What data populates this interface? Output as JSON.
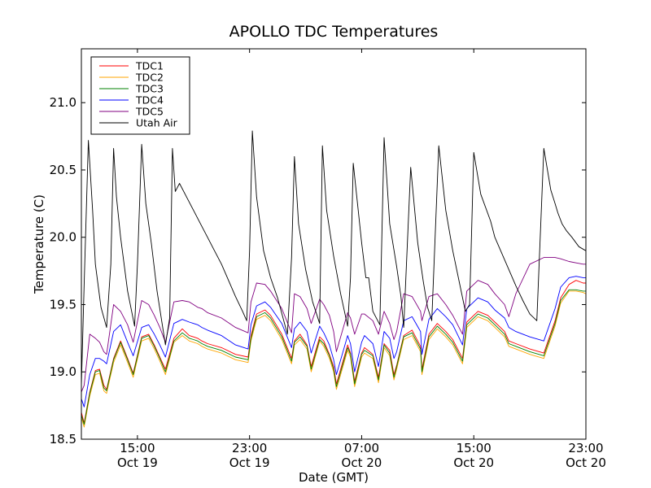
{
  "chart_data": {
    "type": "line",
    "title": "APOLLO TDC Temperatures",
    "xlabel": "Date (GMT)",
    "ylabel": "Temperature (C)",
    "xlim": [
      0,
      36
    ],
    "ylim": [
      18.5,
      21.4
    ],
    "x_unit": "hours since Oct 19 11:00 GMT",
    "yticks": [
      18.5,
      19.0,
      19.5,
      20.0,
      20.5,
      21.0
    ],
    "ytick_labels": [
      "18.5",
      "19.0",
      "19.5",
      "20.0",
      "20.5",
      "21.0"
    ],
    "xticks": [
      {
        "x": 4,
        "time": "15:00",
        "date": "Oct 19"
      },
      {
        "x": 12,
        "time": "23:00",
        "date": "Oct 19"
      },
      {
        "x": 20,
        "time": "07:00",
        "date": "Oct 20"
      },
      {
        "x": 28,
        "time": "15:00",
        "date": "Oct 20"
      },
      {
        "x": 36,
        "time": "23:00",
        "date": "Oct 20"
      }
    ],
    "legend_position": "top-left",
    "series": [
      {
        "name": "TDC1",
        "color": "#ff0000",
        "x": [
          0,
          0.2,
          0.6,
          1.0,
          1.3,
          1.6,
          1.8,
          2.3,
          2.8,
          3.3,
          3.7,
          4.3,
          4.8,
          5.2,
          5.6,
          6.0,
          6.6,
          7.2,
          7.7,
          8.0,
          8.3,
          8.6,
          9.0,
          10.0,
          11.0,
          11.9,
          12.1,
          12.5,
          13.1,
          13.5,
          14.3,
          15.0,
          15.2,
          15.6,
          16.1,
          16.4,
          17.0,
          17.3,
          17.7,
          18.0,
          18.2,
          19.0,
          19.2,
          19.5,
          20.0,
          20.2,
          20.8,
          21.2,
          21.6,
          22.0,
          22.3,
          22.5,
          23.0,
          23.6,
          24.2,
          24.3,
          24.8,
          25.4,
          26.0,
          26.5,
          27.2,
          27.5,
          28.3,
          29.0,
          29.5,
          30.2,
          30.5,
          31.0,
          32.0,
          33.0,
          33.8,
          34.2,
          34.8,
          35.3,
          35.8,
          36.0
        ],
        "values": [
          18.7,
          18.62,
          18.85,
          19.01,
          19.02,
          18.9,
          18.87,
          19.1,
          19.23,
          19.1,
          18.99,
          19.26,
          19.28,
          19.2,
          19.11,
          19.02,
          19.25,
          19.32,
          19.27,
          19.26,
          19.25,
          19.23,
          19.21,
          19.18,
          19.13,
          19.11,
          19.27,
          19.43,
          19.46,
          19.42,
          19.28,
          19.1,
          19.23,
          19.28,
          19.2,
          19.04,
          19.26,
          19.23,
          19.13,
          19.04,
          18.91,
          19.2,
          19.14,
          18.93,
          19.14,
          19.18,
          19.13,
          18.96,
          19.21,
          19.16,
          18.98,
          19.05,
          19.27,
          19.31,
          19.19,
          19.02,
          19.28,
          19.36,
          19.3,
          19.24,
          19.1,
          19.37,
          19.45,
          19.42,
          19.37,
          19.3,
          19.23,
          19.21,
          19.17,
          19.14,
          19.38,
          19.55,
          19.65,
          19.68,
          19.66,
          19.66
        ]
      },
      {
        "name": "TDC2",
        "color": "#ffa500",
        "x": [
          0,
          0.2,
          0.6,
          1.0,
          1.3,
          1.6,
          1.8,
          2.3,
          2.8,
          3.3,
          3.7,
          4.3,
          4.8,
          5.2,
          5.6,
          6.0,
          6.6,
          7.2,
          7.7,
          8.0,
          8.3,
          8.6,
          9.0,
          10.0,
          11.0,
          11.9,
          12.1,
          12.5,
          13.1,
          13.5,
          14.3,
          15.0,
          15.2,
          15.6,
          16.1,
          16.4,
          17.0,
          17.3,
          17.7,
          18.0,
          18.2,
          19.0,
          19.2,
          19.5,
          20.0,
          20.2,
          20.8,
          21.2,
          21.6,
          22.0,
          22.3,
          22.5,
          23.0,
          23.6,
          24.2,
          24.3,
          24.8,
          25.4,
          26.0,
          26.5,
          27.2,
          27.5,
          28.3,
          29.0,
          29.5,
          30.2,
          30.5,
          31.0,
          32.0,
          33.0,
          33.8,
          34.2,
          34.8,
          35.3,
          35.8,
          36.0
        ],
        "values": [
          18.66,
          18.59,
          18.82,
          18.98,
          18.99,
          18.86,
          18.84,
          19.07,
          19.2,
          19.07,
          18.96,
          19.23,
          19.25,
          19.17,
          19.08,
          18.98,
          19.22,
          19.27,
          19.23,
          19.22,
          19.21,
          19.19,
          19.17,
          19.14,
          19.09,
          19.07,
          19.23,
          19.39,
          19.42,
          19.38,
          19.24,
          19.06,
          19.2,
          19.24,
          19.17,
          19.0,
          19.23,
          19.19,
          19.1,
          19.0,
          18.87,
          19.16,
          19.11,
          18.89,
          19.11,
          19.14,
          19.1,
          18.92,
          19.18,
          19.12,
          18.94,
          19.02,
          19.24,
          19.27,
          19.15,
          18.98,
          19.24,
          19.32,
          19.26,
          19.2,
          19.06,
          19.33,
          19.41,
          19.38,
          19.33,
          19.26,
          19.19,
          19.17,
          19.13,
          19.1,
          19.34,
          19.51,
          19.6,
          19.6,
          19.59,
          19.58
        ]
      },
      {
        "name": "TDC3",
        "color": "#008000",
        "x": [
          0,
          0.2,
          0.6,
          1.0,
          1.3,
          1.6,
          1.8,
          2.3,
          2.8,
          3.3,
          3.7,
          4.3,
          4.8,
          5.2,
          5.6,
          6.0,
          6.6,
          7.2,
          7.7,
          8.0,
          8.3,
          8.6,
          9.0,
          10.0,
          11.0,
          11.9,
          12.1,
          12.5,
          13.1,
          13.5,
          14.3,
          15.0,
          15.2,
          15.6,
          16.1,
          16.4,
          17.0,
          17.3,
          17.7,
          18.0,
          18.2,
          19.0,
          19.2,
          19.5,
          20.0,
          20.2,
          20.8,
          21.2,
          21.6,
          22.0,
          22.3,
          22.5,
          23.0,
          23.6,
          24.2,
          24.3,
          24.8,
          25.4,
          26.0,
          26.5,
          27.2,
          27.5,
          28.3,
          29.0,
          29.5,
          30.2,
          30.5,
          31.0,
          32.0,
          33.0,
          33.8,
          34.2,
          34.8,
          35.3,
          35.8,
          36.0
        ],
        "values": [
          18.68,
          18.61,
          18.84,
          19.0,
          19.01,
          18.88,
          18.86,
          19.09,
          19.22,
          19.09,
          18.98,
          19.25,
          19.27,
          19.19,
          19.1,
          19.0,
          19.23,
          19.29,
          19.25,
          19.24,
          19.23,
          19.21,
          19.19,
          19.16,
          19.11,
          19.09,
          19.25,
          19.41,
          19.44,
          19.4,
          19.26,
          19.08,
          19.22,
          19.26,
          19.19,
          19.02,
          19.24,
          19.21,
          19.12,
          19.02,
          18.89,
          19.18,
          19.13,
          18.91,
          19.13,
          19.16,
          19.12,
          18.94,
          19.2,
          19.14,
          18.96,
          19.04,
          19.26,
          19.29,
          19.17,
          19.0,
          19.26,
          19.34,
          19.28,
          19.22,
          19.08,
          19.35,
          19.43,
          19.4,
          19.35,
          19.28,
          19.21,
          19.19,
          19.15,
          19.12,
          19.36,
          19.53,
          19.61,
          19.61,
          19.6,
          19.6
        ]
      },
      {
        "name": "TDC4",
        "color": "#0000ff",
        "x": [
          0,
          0.2,
          0.6,
          1.0,
          1.3,
          1.6,
          1.8,
          2.3,
          2.8,
          3.3,
          3.7,
          4.3,
          4.8,
          5.2,
          5.6,
          6.0,
          6.6,
          7.2,
          7.7,
          8.0,
          8.3,
          8.6,
          9.0,
          10.0,
          11.0,
          11.9,
          12.1,
          12.5,
          13.1,
          13.5,
          14.3,
          15.0,
          15.2,
          15.6,
          16.1,
          16.4,
          17.0,
          17.3,
          17.7,
          18.0,
          18.2,
          19.0,
          19.2,
          19.5,
          20.0,
          20.2,
          20.8,
          21.2,
          21.6,
          22.0,
          22.3,
          22.5,
          23.0,
          23.6,
          24.2,
          24.3,
          24.8,
          25.4,
          26.0,
          26.5,
          27.2,
          27.5,
          28.3,
          29.0,
          29.5,
          30.2,
          30.5,
          31.0,
          32.0,
          33.0,
          33.8,
          34.2,
          34.8,
          35.3,
          35.8,
          36.0
        ],
        "values": [
          18.8,
          18.74,
          18.98,
          19.1,
          19.1,
          19.08,
          19.06,
          19.3,
          19.35,
          19.22,
          19.12,
          19.33,
          19.35,
          19.28,
          19.2,
          19.11,
          19.36,
          19.39,
          19.37,
          19.36,
          19.35,
          19.33,
          19.31,
          19.27,
          19.2,
          19.17,
          19.35,
          19.49,
          19.52,
          19.48,
          19.36,
          19.18,
          19.32,
          19.37,
          19.3,
          19.14,
          19.34,
          19.29,
          19.2,
          19.09,
          18.98,
          19.27,
          19.21,
          19.0,
          19.22,
          19.27,
          19.21,
          19.04,
          19.3,
          19.25,
          19.1,
          19.15,
          19.38,
          19.41,
          19.3,
          19.13,
          19.39,
          19.47,
          19.41,
          19.35,
          19.2,
          19.47,
          19.55,
          19.52,
          19.46,
          19.4,
          19.33,
          19.3,
          19.26,
          19.23,
          19.47,
          19.63,
          19.7,
          19.71,
          19.7,
          19.7
        ]
      },
      {
        "name": "TDC5",
        "color": "#800080",
        "x": [
          0,
          0.2,
          0.6,
          1.0,
          1.3,
          1.6,
          1.8,
          2.3,
          2.8,
          3.3,
          3.7,
          4.3,
          4.8,
          5.2,
          5.6,
          6.0,
          6.6,
          7.2,
          7.7,
          8.0,
          8.3,
          8.6,
          9.0,
          10.0,
          11.0,
          11.9,
          12.1,
          12.5,
          13.1,
          13.5,
          14.3,
          15.0,
          15.2,
          15.6,
          16.1,
          16.4,
          17.0,
          17.3,
          17.7,
          18.0,
          18.2,
          19.0,
          19.2,
          19.5,
          20.0,
          20.2,
          20.8,
          21.2,
          21.6,
          22.0,
          22.3,
          22.5,
          23.0,
          23.6,
          24.2,
          24.3,
          24.8,
          25.4,
          26.0,
          26.5,
          27.2,
          27.5,
          28.3,
          29.0,
          29.5,
          30.2,
          30.5,
          31.0,
          32.0,
          33.0,
          33.8,
          34.2,
          34.8,
          35.3,
          35.8,
          36.0
        ],
        "values": [
          18.85,
          18.9,
          19.28,
          19.25,
          19.22,
          19.15,
          19.13,
          19.5,
          19.45,
          19.35,
          19.22,
          19.53,
          19.5,
          19.42,
          19.33,
          19.22,
          19.52,
          19.53,
          19.52,
          19.5,
          19.48,
          19.47,
          19.44,
          19.4,
          19.33,
          19.29,
          19.52,
          19.66,
          19.65,
          19.6,
          19.47,
          19.29,
          19.58,
          19.56,
          19.47,
          19.36,
          19.54,
          19.5,
          19.42,
          19.3,
          19.15,
          19.44,
          19.4,
          19.28,
          19.43,
          19.43,
          19.38,
          19.28,
          19.45,
          19.36,
          19.24,
          19.3,
          19.58,
          19.56,
          19.45,
          19.38,
          19.56,
          19.58,
          19.5,
          19.42,
          19.28,
          19.6,
          19.68,
          19.65,
          19.58,
          19.5,
          19.41,
          19.58,
          19.8,
          19.85,
          19.85,
          19.84,
          19.82,
          19.81,
          19.8,
          19.8
        ]
      },
      {
        "name": "Utah Air",
        "color": "#000000",
        "x": [
          0,
          0.2,
          0.5,
          0.6,
          0.8,
          1.0,
          1.4,
          1.8,
          2.1,
          2.3,
          2.5,
          2.8,
          3.3,
          3.8,
          4.0,
          4.3,
          4.6,
          5.0,
          5.4,
          6.0,
          6.3,
          6.5,
          6.7,
          7.0,
          7.5,
          8.0,
          8.5,
          9.0,
          9.5,
          10.0,
          10.5,
          11.0,
          11.5,
          11.8,
          12.0,
          12.2,
          12.5,
          13.0,
          13.5,
          14.0,
          14.7,
          15.0,
          15.2,
          15.5,
          16.0,
          16.5,
          17.0,
          17.2,
          17.5,
          18.0,
          18.5,
          19.0,
          19.2,
          19.4,
          20.0,
          20.3,
          20.5,
          20.8,
          21.3,
          21.6,
          22.0,
          22.5,
          22.8,
          23.0,
          23.5,
          24.0,
          24.4,
          24.7,
          25.0,
          25.5,
          26.0,
          26.5,
          27.1,
          27.4,
          27.7,
          28.0,
          28.5,
          29.2,
          29.5,
          30.0,
          30.5,
          31.0,
          31.5,
          32.0,
          32.5,
          33.0,
          33.5,
          33.8,
          34.0,
          34.3,
          34.6,
          35.0,
          35.5,
          36.0
        ],
        "values": [
          18.9,
          19.65,
          20.72,
          20.55,
          20.2,
          19.8,
          19.48,
          19.33,
          19.8,
          20.66,
          20.3,
          20.0,
          19.6,
          19.34,
          19.8,
          20.69,
          20.25,
          19.95,
          19.6,
          19.2,
          19.4,
          20.66,
          20.34,
          20.4,
          20.3,
          20.2,
          20.1,
          20.0,
          19.9,
          19.8,
          19.68,
          19.56,
          19.45,
          19.38,
          19.9,
          20.79,
          20.3,
          19.9,
          19.7,
          19.55,
          19.28,
          19.85,
          20.6,
          20.1,
          19.76,
          19.52,
          19.36,
          20.68,
          20.2,
          19.86,
          19.58,
          19.34,
          19.7,
          20.55,
          19.96,
          19.7,
          19.7,
          19.45,
          19.35,
          20.74,
          20.1,
          19.78,
          19.56,
          19.33,
          20.52,
          19.96,
          19.67,
          19.48,
          19.38,
          20.68,
          20.2,
          19.9,
          19.6,
          19.45,
          19.5,
          20.63,
          20.32,
          20.12,
          20.0,
          19.88,
          19.76,
          19.64,
          19.53,
          19.43,
          19.38,
          20.66,
          20.35,
          20.25,
          20.18,
          20.1,
          20.05,
          20.0,
          19.93,
          19.9
        ]
      }
    ]
  }
}
